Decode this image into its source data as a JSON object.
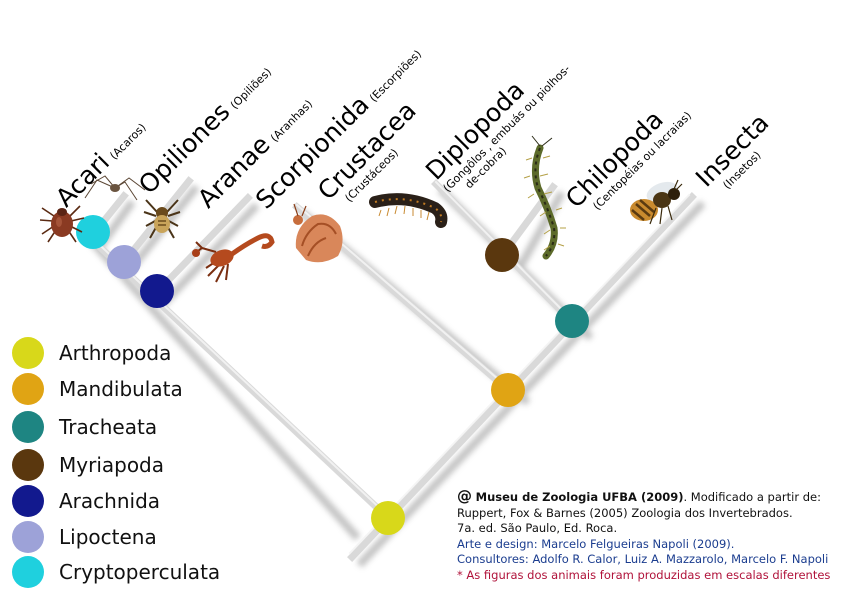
{
  "taxa": [
    {
      "name": "Acari",
      "common": "(Acaros)"
    },
    {
      "name": "Opiliones",
      "common": "(Opiliões)"
    },
    {
      "name": "Aranae",
      "common": "(Aranhas)"
    },
    {
      "name": "Scorpionida",
      "common": "(Escorpiões)"
    },
    {
      "name": "Crustacea",
      "common": "(Crustáceos)"
    },
    {
      "name": "Diplopoda",
      "common_line1": "(Gongôlos , embuás ou piolhos-",
      "common_line2": "de-cobra)"
    },
    {
      "name": "Chilopoda",
      "common": "(Centopéias ou lacraias)"
    },
    {
      "name": "Insecta",
      "common": "(Insetos)"
    }
  ],
  "legend": [
    {
      "label": "Arthropoda",
      "color": "#d8d81a"
    },
    {
      "label": "Mandibulata",
      "color": "#e0a414"
    },
    {
      "label": "Tracheata",
      "color": "#1e8582"
    },
    {
      "label": "Myriapoda",
      "color": "#5a370e"
    },
    {
      "label": "Arachnida",
      "color": "#12198e"
    },
    {
      "label": "Lipoctena",
      "color": "#9da2d8"
    },
    {
      "label": "Cryptoperculata",
      "color": "#1fd0de"
    }
  ],
  "credits": {
    "at_sign": "@",
    "museum": "Museu de Zoologia UFBA (2009)",
    "line1_rest": ". Modificado a partir de:",
    "line2": "Ruppert, Fox & Barnes (2005) Zoologia dos Invertebrados.",
    "line3": "7a. ed. São Paulo, Ed. Roca.",
    "line4": "Arte e design: Marcelo Felgueiras Napoli (2009).",
    "line5": "Consultores: Adolfo R. Calor, Luiz A. Mazzarolo, Marcelo F. Napoli",
    "line6": "* As figuras dos animais foram produzidas em escalas diferentes"
  },
  "animals": [
    "mite-icon",
    "harvestman-icon",
    "spider-icon",
    "scorpion-icon",
    "crab-icon",
    "millipede-icon",
    "centipede-icon",
    "bee-icon"
  ]
}
